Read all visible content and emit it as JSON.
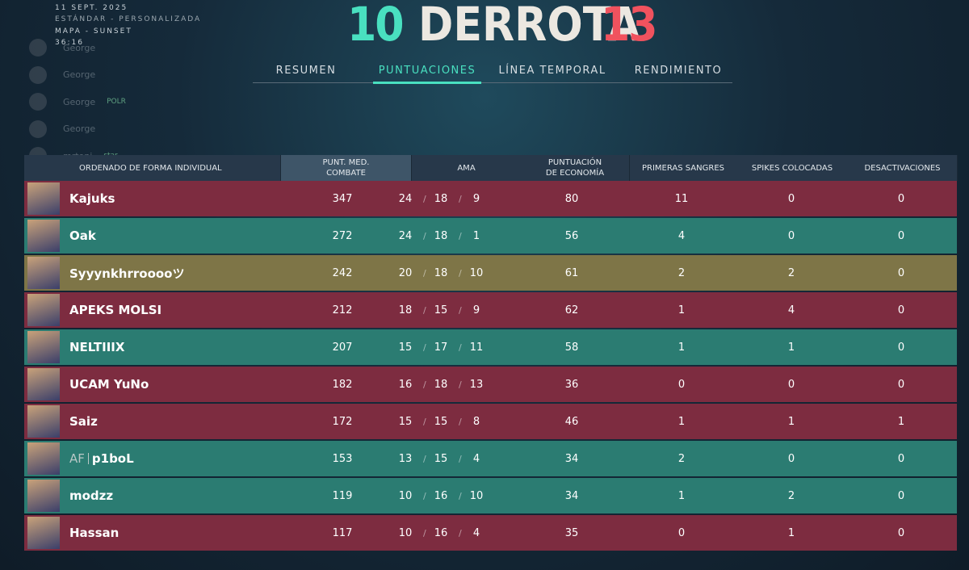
{
  "header": {
    "date": "11 SEPT. 2025",
    "mode": "ESTÁNDAR - PERSONALIZADA",
    "map": "MAPA - SUNSET",
    "duration": "36:16",
    "score_left": "10",
    "result": "DERROTA",
    "score_right": "13"
  },
  "friends": [
    {
      "name": "George",
      "tag": ""
    },
    {
      "name": "George",
      "tag": ""
    },
    {
      "name": "George",
      "tag": "POLR"
    },
    {
      "name": "George",
      "tag": ""
    },
    {
      "name": "mrtoni",
      "tag": "star"
    }
  ],
  "tabs": {
    "items": [
      "RESUMEN",
      "PUNTUACIONES",
      "LÍNEA TEMPORAL",
      "RENDIMIENTO"
    ],
    "active": 1
  },
  "table": {
    "columns": [
      "ORDENADO DE FORMA INDIVIDUAL",
      "PUNT. MED. COMBATE",
      "AMA",
      "PUNTUACIÓN DE ECONOMÍA",
      "PRIMERAS SANGRES",
      "SPIKES COLOCADAS",
      "DESACTIVACIONES"
    ],
    "rows": [
      {
        "name": "Kajuks",
        "acs": 347,
        "k": 24,
        "d": 18,
        "a": 9,
        "econ": 80,
        "fb": 11,
        "plants": 0,
        "defuses": 0,
        "color": "#7d2c40"
      },
      {
        "name": "Oak",
        "acs": 272,
        "k": 24,
        "d": 18,
        "a": 1,
        "econ": 56,
        "fb": 4,
        "plants": 0,
        "defuses": 0,
        "color": "#2b7c72"
      },
      {
        "name": "Syyynkhrrooooツ",
        "acs": 242,
        "k": 20,
        "d": 18,
        "a": 10,
        "econ": 61,
        "fb": 2,
        "plants": 2,
        "defuses": 0,
        "color": "#7e7547"
      },
      {
        "name": "APEKS MOLSI",
        "acs": 212,
        "k": 18,
        "d": 15,
        "a": 9,
        "econ": 62,
        "fb": 1,
        "plants": 4,
        "defuses": 0,
        "color": "#7d2c40"
      },
      {
        "name": "NELTIIIX",
        "acs": 207,
        "k": 15,
        "d": 17,
        "a": 11,
        "econ": 58,
        "fb": 1,
        "plants": 1,
        "defuses": 0,
        "color": "#2b7c72"
      },
      {
        "name": "UCAM YuNo",
        "acs": 182,
        "k": 16,
        "d": 18,
        "a": 13,
        "econ": 36,
        "fb": 0,
        "plants": 0,
        "defuses": 0,
        "color": "#7d2c40"
      },
      {
        "name": "Saiz",
        "acs": 172,
        "k": 15,
        "d": 15,
        "a": 8,
        "econ": 46,
        "fb": 1,
        "plants": 1,
        "defuses": 1,
        "color": "#7d2c40"
      },
      {
        "tag": "AF",
        "name": "p1boL",
        "acs": 153,
        "k": 13,
        "d": 15,
        "a": 4,
        "econ": 34,
        "fb": 2,
        "plants": 0,
        "defuses": 0,
        "color": "#2b7c72"
      },
      {
        "name": "modzz",
        "acs": 119,
        "k": 10,
        "d": 16,
        "a": 10,
        "econ": 34,
        "fb": 1,
        "plants": 2,
        "defuses": 0,
        "color": "#2b7c72"
      },
      {
        "name": "Hassan",
        "acs": 117,
        "k": 10,
        "d": 16,
        "a": 4,
        "econ": 35,
        "fb": 0,
        "plants": 1,
        "defuses": 0,
        "color": "#7d2c40"
      }
    ]
  }
}
